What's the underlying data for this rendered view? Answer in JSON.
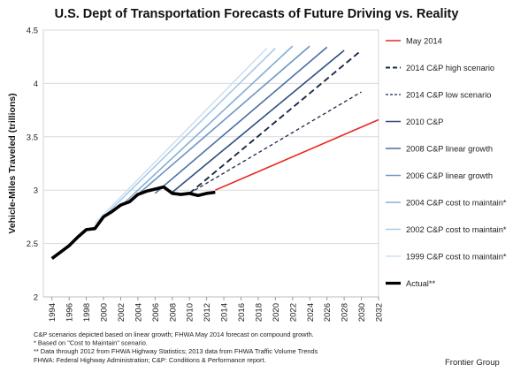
{
  "chart_data": {
    "type": "line",
    "title": "U.S. Dept of Transportation Forecasts of Future Driving vs. Reality",
    "ylabel": "Vehicle-Miles Traveled (trillions)",
    "xlabel": "",
    "xlim": [
      1993,
      2032
    ],
    "ylim": [
      2,
      4.5
    ],
    "x_ticks": [
      "1994",
      "1996",
      "1998",
      "2000",
      "2002",
      "2004",
      "2006",
      "2008",
      "2010",
      "2012",
      "2014",
      "2016",
      "2018",
      "2020",
      "2022",
      "2024",
      "2026",
      "2028",
      "2030",
      "2032"
    ],
    "y_ticks": [
      "2",
      "2.5",
      "3",
      "3.5",
      "4",
      "4.5"
    ],
    "grid": "horizontal",
    "legend_position": "right",
    "series": [
      {
        "name": "May 2014",
        "color": "#e8291f",
        "dash": "solid",
        "width": 1.6,
        "x": [
          2013,
          2032
        ],
        "y": [
          3.0,
          3.66
        ]
      },
      {
        "name": "2014 C&P high scenario",
        "color": "#1a2a4a",
        "dash": "dashed",
        "width": 1.9,
        "x": [
          2010,
          2030
        ],
        "y": [
          2.97,
          4.31
        ]
      },
      {
        "name": "2014 C&P low scenario",
        "color": "#1a2a4a",
        "dash": "dashed",
        "width": 1.3,
        "x": [
          2010,
          2030
        ],
        "y": [
          2.97,
          3.92
        ]
      },
      {
        "name": "2010 C&P",
        "color": "#2f4f7f",
        "dash": "solid",
        "width": 1.6,
        "x": [
          2008,
          2028
        ],
        "y": [
          2.98,
          4.31
        ]
      },
      {
        "name": "2008 C&P linear growth",
        "color": "#4a6fa5",
        "dash": "solid",
        "width": 1.6,
        "x": [
          2006,
          2026
        ],
        "y": [
          2.97,
          4.34
        ]
      },
      {
        "name": "2006 C&P linear growth",
        "color": "#6f94c4",
        "dash": "solid",
        "width": 1.6,
        "x": [
          2004,
          2024
        ],
        "y": [
          2.96,
          4.35
        ]
      },
      {
        "name": "2004 C&P cost to maintain*",
        "color": "#86aed6",
        "dash": "solid",
        "width": 1.6,
        "x": [
          2002,
          2022
        ],
        "y": [
          2.85,
          4.35
        ]
      },
      {
        "name": "2002 C&P cost to maintain*",
        "color": "#a9c9e7",
        "dash": "solid",
        "width": 1.6,
        "x": [
          2000,
          2020
        ],
        "y": [
          2.75,
          4.33
        ]
      },
      {
        "name": "1999 C&P cost to maintain*",
        "color": "#cfe1f2",
        "dash": "solid",
        "width": 1.6,
        "x": [
          1999,
          2019
        ],
        "y": [
          2.69,
          4.33
        ]
      },
      {
        "name": "Actual**",
        "color": "#000000",
        "dash": "solid",
        "width": 3.6,
        "x": [
          1994,
          1995,
          1996,
          1997,
          1998,
          1999,
          2000,
          2001,
          2002,
          2003,
          2004,
          2005,
          2006,
          2007,
          2008,
          2009,
          2010,
          2011,
          2012,
          2013
        ],
        "y": [
          2.36,
          2.42,
          2.48,
          2.56,
          2.63,
          2.64,
          2.75,
          2.8,
          2.86,
          2.89,
          2.96,
          2.99,
          3.01,
          3.03,
          2.97,
          2.96,
          2.97,
          2.95,
          2.97,
          2.98
        ]
      }
    ],
    "notes": [
      "C&P scenarios depicted based on linear growth; FHWA May 2014 forecast on compound growth.",
      "* Based on \"Cost to Maintain\" scenario.",
      "** Data through 2012 from FHWA Highway Statistics; 2013 data from FHWA Traffic Volume Trends",
      "FHWA: Federal Highway Administration; C&P: Conditions & Performance report."
    ],
    "credit": "Frontier Group"
  }
}
